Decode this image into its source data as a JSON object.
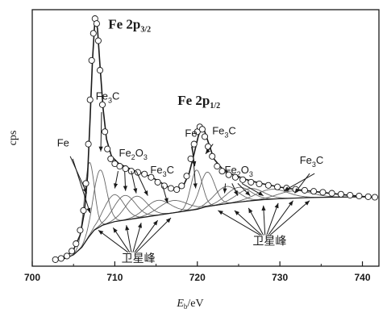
{
  "chart_data": {
    "type": "line",
    "xlabel_italic": "E",
    "xlabel_sub": "b",
    "xlabel_rest": "/eV",
    "ylabel": "cps",
    "xlim": [
      700,
      742
    ],
    "ylim": [
      0,
      100
    ],
    "xticks": [
      700,
      710,
      720,
      730,
      740
    ],
    "grid": false,
    "series": [
      {
        "kind": "measured",
        "x": [
          702.8,
          703.5,
          704.2,
          704.8,
          705.3,
          705.8,
          706.2,
          706.5,
          706.8,
          707.0,
          707.2,
          707.4,
          707.6,
          707.8,
          708.0,
          708.2,
          708.5,
          708.8,
          709.1,
          709.5,
          710.0,
          710.6,
          711.3,
          712.0,
          712.8,
          713.6,
          714.4,
          715.2,
          716.0,
          716.8,
          717.5,
          718.1,
          718.7,
          719.2,
          719.6,
          720.0,
          720.3,
          720.6,
          720.9,
          721.3,
          721.8,
          722.4,
          723.0,
          723.8,
          724.6,
          725.5,
          726.5,
          727.5,
          728.6,
          729.7,
          730.8,
          731.9,
          733.0,
          734.1,
          735.2,
          736.3,
          737.4,
          738.5,
          739.6,
          740.7,
          741.5
        ],
        "y": [
          1.0,
          1.5,
          2.5,
          4.5,
          7.5,
          13,
          21,
          32,
          48,
          66,
          82,
          93,
          99,
          97,
          90,
          78,
          64,
          53,
          46,
          42,
          40,
          39,
          38,
          37,
          36.5,
          35.8,
          34.5,
          32.5,
          31,
          30,
          29.5,
          31,
          35,
          42,
          48,
          53,
          55,
          54,
          51,
          47,
          43,
          39,
          37,
          35.5,
          34.5,
          33.5,
          32.5,
          31.8,
          31.2,
          30.6,
          30.1,
          29.6,
          29.2,
          28.8,
          28.4,
          28.0,
          27.6,
          27.2,
          26.9,
          26.6,
          26.4
        ]
      },
      {
        "kind": "fit-envelope",
        "x": [
          702.8,
          704,
          705,
          705.8,
          706.3,
          706.7,
          707.0,
          707.3,
          707.6,
          707.9,
          708.2,
          708.6,
          709.0,
          709.6,
          710.5,
          711.5,
          712.5,
          713.5,
          714.5,
          715.5,
          716.5,
          717.5,
          718.3,
          719.0,
          719.6,
          720.1,
          720.5,
          720.9,
          721.4,
          722,
          723,
          724,
          725,
          726.5,
          728,
          730,
          732,
          734,
          736,
          738,
          740,
          741.5
        ],
        "y": [
          1.0,
          2.0,
          5.0,
          11,
          20,
          35,
          58,
          82,
          99,
          95,
          80,
          62,
          50,
          43,
          40,
          38.5,
          37,
          36,
          34.5,
          32.5,
          30.5,
          29.5,
          31,
          36,
          44,
          51,
          55,
          53,
          48,
          42,
          38,
          36,
          34.5,
          33,
          31.8,
          30.5,
          29.5,
          28.8,
          28.0,
          27.3,
          26.7,
          26.3
        ]
      },
      {
        "kind": "background",
        "x": [
          702.8,
          704,
          705,
          706,
          706.8,
          707.5,
          708.5,
          710,
          712,
          714,
          716,
          718,
          720,
          721,
          722,
          724,
          726,
          728,
          730,
          733,
          736,
          739,
          741.5
        ],
        "y": [
          1.0,
          1.5,
          3.0,
          6.0,
          10,
          13,
          15,
          16.5,
          17.5,
          18.5,
          19.5,
          20.5,
          21.5,
          22.5,
          23,
          24,
          24.8,
          25.4,
          25.8,
          26.2,
          26.4,
          26.5,
          26.5
        ]
      }
    ],
    "components": [
      {
        "label": "Fe",
        "center": 706.9,
        "height": 30,
        "width": 0.6
      },
      {
        "label": "Fe3C",
        "center": 708.2,
        "height": 23,
        "width": 0.8
      },
      {
        "label": "Fe2O3",
        "center": 709.9,
        "height": 11,
        "width": 1.2
      },
      {
        "label": "Fe2O3",
        "center": 711.2,
        "height": 10,
        "width": 1.3
      },
      {
        "label": "Fe2O3",
        "center": 712.6,
        "height": 9,
        "width": 1.3
      },
      {
        "label": "Fe3C",
        "center": 715.2,
        "height": 6,
        "width": 1.5
      },
      {
        "label": "卫星峰",
        "center": 717.0,
        "height": 5,
        "width": 1.7
      },
      {
        "label": "Fe",
        "center": 719.9,
        "height": 16,
        "width": 0.7
      },
      {
        "label": "Fe3C",
        "center": 721.2,
        "height": 14,
        "width": 0.9
      },
      {
        "label": "Fe2O3",
        "center": 723.5,
        "height": 7,
        "width": 1.4
      },
      {
        "label": "Fe2O3",
        "center": 725.0,
        "height": 6,
        "width": 1.5
      },
      {
        "label": "Fe2O3",
        "center": 726.4,
        "height": 5,
        "width": 1.6
      },
      {
        "label": "Fe3C",
        "center": 729.0,
        "height": 4,
        "width": 1.9
      },
      {
        "label": "卫星峰",
        "center": 731.8,
        "height": 3,
        "width": 2.0
      }
    ],
    "annotations": [
      {
        "name": "fe2p32",
        "base": "Fe 2p",
        "sub": "3/2",
        "x": 709.2,
        "y": 95
      },
      {
        "name": "fe2p12",
        "base": "Fe 2p",
        "sub": "1/2",
        "x": 717.6,
        "y": 64
      },
      {
        "name": "fe-left",
        "base": "Fe",
        "sub": "",
        "x": 703.0,
        "y": 47
      },
      {
        "name": "fe3c-left",
        "base": "Fe",
        "sub": "3",
        "tail": "C",
        "x": 707.7,
        "y": 66
      },
      {
        "name": "fe2o3-left",
        "base": "Fe",
        "sub": "2",
        "mid": "O",
        "sub2": "3",
        "x": 710.5,
        "y": 43
      },
      {
        "name": "fe3c-mid",
        "base": "Fe",
        "sub": "3",
        "tail": "C",
        "x": 714.3,
        "y": 36
      },
      {
        "name": "fe-right",
        "base": "Fe",
        "sub": "",
        "x": 718.5,
        "y": 51
      },
      {
        "name": "fe3c-right",
        "base": "Fe",
        "sub": "3",
        "tail": "C",
        "x": 721.8,
        "y": 52
      },
      {
        "name": "fe2o3-right",
        "base": "Fe",
        "sub": "2",
        "mid": "O",
        "sub2": "3",
        "x": 723.3,
        "y": 36
      },
      {
        "name": "fe3c-far",
        "base": "Fe",
        "sub": "3",
        "tail": "C",
        "x": 732.4,
        "y": 40
      },
      {
        "name": "sat-left",
        "base": "卫星峰",
        "sub": "",
        "x": 710.8,
        "y": 0
      },
      {
        "name": "sat-right",
        "base": "卫星峰",
        "sub": "",
        "x": 726.7,
        "y": 7
      }
    ],
    "arrows": [
      {
        "from": [
          704.6,
          43
        ],
        "to": [
          706.6,
          28
        ]
      },
      {
        "from": [
          704.9,
          42
        ],
        "to": [
          707.0,
          20
        ]
      },
      {
        "from": [
          708.4,
          61
        ],
        "to": [
          708.3,
          45
        ]
      },
      {
        "from": [
          710.4,
          37
        ],
        "to": [
          710.0,
          30
        ]
      },
      {
        "from": [
          711.2,
          37
        ],
        "to": [
          711.3,
          29
        ]
      },
      {
        "from": [
          712.0,
          37
        ],
        "to": [
          712.6,
          28
        ]
      },
      {
        "from": [
          712.6,
          37
        ],
        "to": [
          714.0,
          27
        ]
      },
      {
        "from": [
          715.8,
          31
        ],
        "to": [
          716.4,
          24
        ]
      },
      {
        "from": [
          719.3,
          47
        ],
        "to": [
          719.7,
          39
        ]
      },
      {
        "from": [
          719.4,
          47
        ],
        "to": [
          719.8,
          30
        ]
      },
      {
        "from": [
          721.9,
          48
        ],
        "to": [
          721.0,
          44
        ]
      },
      {
        "from": [
          723.4,
          32
        ],
        "to": [
          723.3,
          28
        ]
      },
      {
        "from": [
          724.2,
          32
        ],
        "to": [
          724.9,
          27
        ]
      },
      {
        "from": [
          724.9,
          32
        ],
        "to": [
          726.4,
          27
        ]
      },
      {
        "from": [
          725.4,
          32
        ],
        "to": [
          728.0,
          27
        ]
      },
      {
        "from": [
          733.6,
          36
        ],
        "to": [
          731.8,
          28
        ]
      },
      {
        "from": [
          734.2,
          36
        ],
        "to": [
          730.5,
          29
        ]
      }
    ],
    "sat_arrows": [
      {
        "from": [
          711.6,
          4
        ],
        "to": [
          708.0,
          13
        ]
      },
      {
        "from": [
          711.8,
          4
        ],
        "to": [
          709.8,
          14
        ]
      },
      {
        "from": [
          712.0,
          4
        ],
        "to": [
          711.4,
          15
        ]
      },
      {
        "from": [
          712.2,
          4
        ],
        "to": [
          713.2,
          16
        ]
      },
      {
        "from": [
          712.4,
          4
        ],
        "to": [
          715.2,
          17
        ]
      },
      {
        "from": [
          712.6,
          4
        ],
        "to": [
          716.8,
          18
        ]
      },
      {
        "from": [
          727.6,
          11
        ],
        "to": [
          722.5,
          21
        ]
      },
      {
        "from": [
          727.8,
          11
        ],
        "to": [
          724.5,
          21
        ]
      },
      {
        "from": [
          728.0,
          11
        ],
        "to": [
          726.2,
          22
        ]
      },
      {
        "from": [
          728.2,
          11
        ],
        "to": [
          728.0,
          23
        ]
      },
      {
        "from": [
          728.4,
          11
        ],
        "to": [
          729.8,
          24
        ]
      },
      {
        "from": [
          728.6,
          11
        ],
        "to": [
          731.6,
          25
        ]
      },
      {
        "from": [
          728.8,
          11
        ],
        "to": [
          733.6,
          25
        ]
      }
    ],
    "colors": {
      "ink": "#1a1a1a",
      "component": "#666666",
      "marker_fill": "#ffffff"
    }
  }
}
